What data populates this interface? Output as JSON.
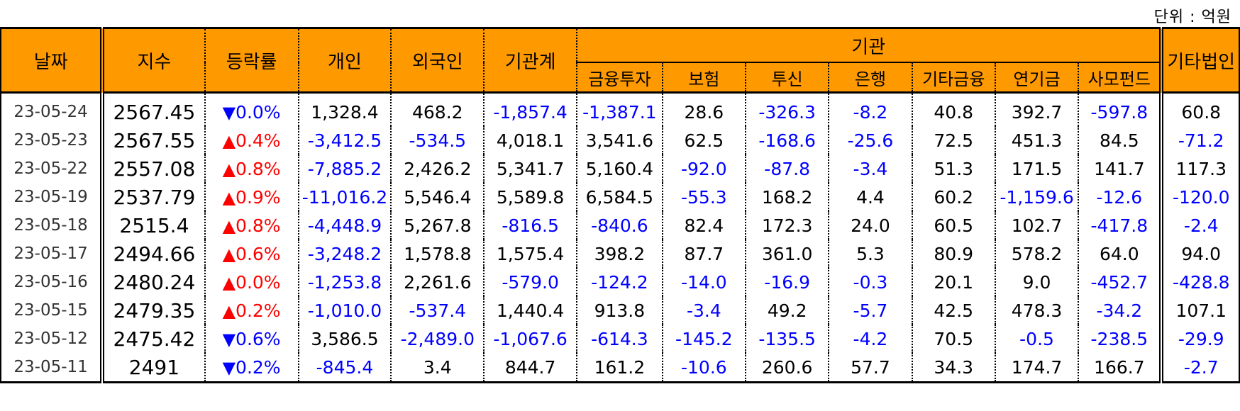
{
  "unit_label": "단위 : 억원",
  "headers": {
    "date": "날짜",
    "index": "지수",
    "change": "등락률",
    "individual": "개인",
    "foreign": "외국인",
    "institution_total": "기관계",
    "institution": "기관",
    "financial_investment": "금융투자",
    "insurance": "보험",
    "investment_trust": "투신",
    "bank": "은행",
    "other_finance": "기타금융",
    "pension": "연기금",
    "private_fund": "사모펀드",
    "other_corp": "기타법인"
  },
  "rows": [
    {
      "date": "23-05-24",
      "index": "2567.45",
      "dir": "down",
      "change": "0.0%",
      "individual": "1,328.4",
      "foreign": "468.2",
      "inst_total": "-1,857.4",
      "fin_inv": "-1,387.1",
      "insurance": "28.6",
      "trust": "-326.3",
      "bank": "-8.2",
      "other_fin": "40.8",
      "pension": "392.7",
      "private_fund": "-597.8",
      "other_corp": "60.8"
    },
    {
      "date": "23-05-23",
      "index": "2567.55",
      "dir": "up",
      "change": "0.4%",
      "individual": "-3,412.5",
      "foreign": "-534.5",
      "inst_total": "4,018.1",
      "fin_inv": "3,541.6",
      "insurance": "62.5",
      "trust": "-168.6",
      "bank": "-25.6",
      "other_fin": "72.5",
      "pension": "451.3",
      "private_fund": "84.5",
      "other_corp": "-71.2"
    },
    {
      "date": "23-05-22",
      "index": "2557.08",
      "dir": "up",
      "change": "0.8%",
      "individual": "-7,885.2",
      "foreign": "2,426.2",
      "inst_total": "5,341.7",
      "fin_inv": "5,160.4",
      "insurance": "-92.0",
      "trust": "-87.8",
      "bank": "-3.4",
      "other_fin": "51.3",
      "pension": "171.5",
      "private_fund": "141.7",
      "other_corp": "117.3"
    },
    {
      "date": "23-05-19",
      "index": "2537.79",
      "dir": "up",
      "change": "0.9%",
      "individual": "-11,016.2",
      "foreign": "5,546.4",
      "inst_total": "5,589.8",
      "fin_inv": "6,584.5",
      "insurance": "-55.3",
      "trust": "168.2",
      "bank": "4.4",
      "other_fin": "60.2",
      "pension": "-1,159.6",
      "private_fund": "-12.6",
      "other_corp": "-120.0"
    },
    {
      "date": "23-05-18",
      "index": "2515.4",
      "dir": "up",
      "change": "0.8%",
      "individual": "-4,448.9",
      "foreign": "5,267.8",
      "inst_total": "-816.5",
      "fin_inv": "-840.6",
      "insurance": "82.4",
      "trust": "172.3",
      "bank": "24.0",
      "other_fin": "60.5",
      "pension": "102.7",
      "private_fund": "-417.8",
      "other_corp": "-2.4"
    },
    {
      "date": "23-05-17",
      "index": "2494.66",
      "dir": "up",
      "change": "0.6%",
      "individual": "-3,248.2",
      "foreign": "1,578.8",
      "inst_total": "1,575.4",
      "fin_inv": "398.2",
      "insurance": "87.7",
      "trust": "361.0",
      "bank": "5.3",
      "other_fin": "80.9",
      "pension": "578.2",
      "private_fund": "64.0",
      "other_corp": "94.0"
    },
    {
      "date": "23-05-16",
      "index": "2480.24",
      "dir": "up",
      "change": "0.0%",
      "individual": "-1,253.8",
      "foreign": "2,261.6",
      "inst_total": "-579.0",
      "fin_inv": "-124.2",
      "insurance": "-14.0",
      "trust": "-16.9",
      "bank": "-0.3",
      "other_fin": "20.1",
      "pension": "9.0",
      "private_fund": "-452.7",
      "other_corp": "-428.8"
    },
    {
      "date": "23-05-15",
      "index": "2479.35",
      "dir": "up",
      "change": "0.2%",
      "individual": "-1,010.0",
      "foreign": "-537.4",
      "inst_total": "1,440.4",
      "fin_inv": "913.8",
      "insurance": "-3.4",
      "trust": "49.2",
      "bank": "-5.7",
      "other_fin": "42.5",
      "pension": "478.3",
      "private_fund": "-34.2",
      "other_corp": "107.1"
    },
    {
      "date": "23-05-12",
      "index": "2475.42",
      "dir": "down",
      "change": "0.6%",
      "individual": "3,586.5",
      "foreign": "-2,489.0",
      "inst_total": "-1,067.6",
      "fin_inv": "-614.3",
      "insurance": "-145.2",
      "trust": "-135.5",
      "bank": "-4.2",
      "other_fin": "70.5",
      "pension": "-0.5",
      "private_fund": "-238.5",
      "other_corp": "-29.9"
    },
    {
      "date": "23-05-11",
      "index": "2491",
      "dir": "down",
      "change": "0.2%",
      "individual": "-845.4",
      "foreign": "3.4",
      "inst_total": "844.7",
      "fin_inv": "161.2",
      "insurance": "-10.6",
      "trust": "260.6",
      "bank": "57.7",
      "other_fin": "34.3",
      "pension": "174.7",
      "private_fund": "166.7",
      "other_corp": "-2.7"
    }
  ],
  "colors": {
    "header_bg": "#ff9900",
    "negative": "#0000ff",
    "up": "#ff0000",
    "down": "#0000ff"
  },
  "icons": {
    "up": "up-triangle-icon",
    "down": "down-triangle-icon"
  }
}
